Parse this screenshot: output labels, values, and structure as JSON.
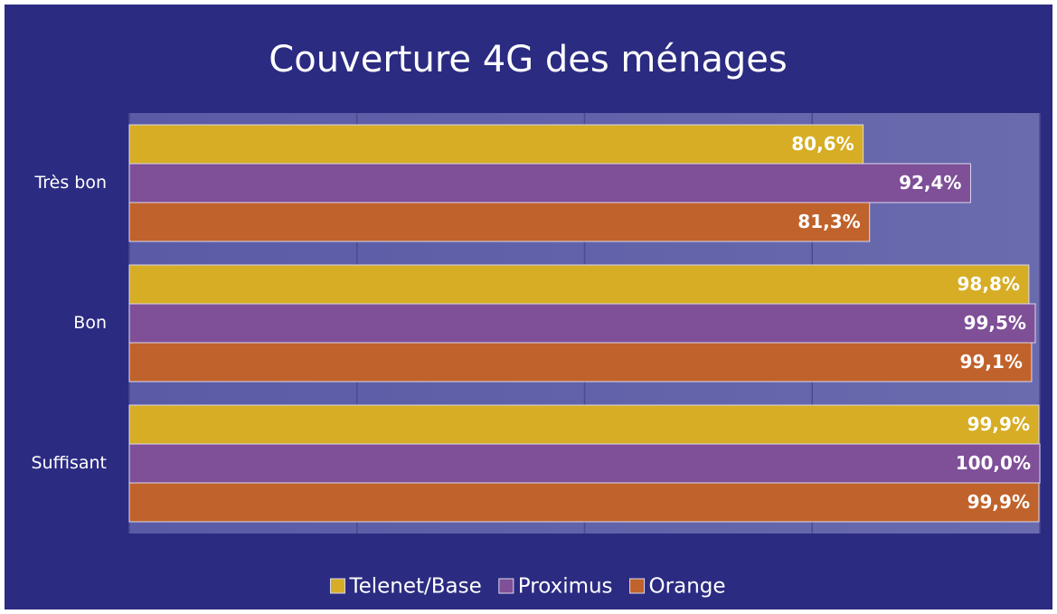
{
  "chart_data": {
    "type": "hbar",
    "title": "Couverture 4G des ménages",
    "categories": [
      "Très bon",
      "Bon",
      "Suffisant"
    ],
    "series": [
      {
        "name": "Telenet/Base",
        "color": "#d6ad24",
        "values": [
          80.6,
          98.8,
          99.9
        ],
        "value_labels": [
          "80,6%",
          "98,8%",
          "99,9%"
        ]
      },
      {
        "name": "Proximus",
        "color": "#7f4f97",
        "values": [
          92.4,
          99.5,
          100.0
        ],
        "value_labels": [
          "92,4%",
          "99,5%",
          "100,0%"
        ]
      },
      {
        "name": "Orange",
        "color": "#c0622b",
        "values": [
          81.3,
          99.1,
          99.9
        ],
        "value_labels": [
          "81,3%",
          "99,1%",
          "99,9%"
        ]
      }
    ],
    "xlim": [
      0,
      100
    ],
    "xticks": [
      0,
      25,
      50,
      75,
      100
    ],
    "grid": true,
    "legend": "bottom"
  }
}
